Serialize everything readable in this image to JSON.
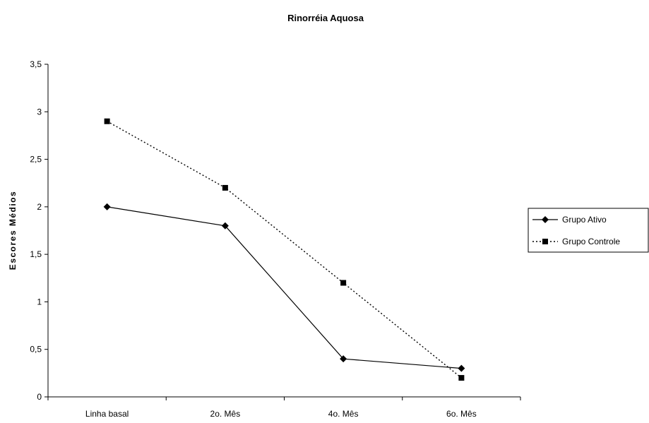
{
  "chart_data": {
    "type": "line",
    "title": "Rinorréia Aquosa",
    "xlabel": "",
    "ylabel": "Escores Médios",
    "categories": [
      "Linha basal",
      "2o. Mês",
      "4o. Mês",
      "6o. Mês"
    ],
    "y_ticks": [
      "0",
      "0,5",
      "1",
      "1,5",
      "2",
      "2,5",
      "3",
      "3,5"
    ],
    "ylim": [
      0,
      3.5
    ],
    "grid": false,
    "legend_position": "right",
    "series": [
      {
        "name": "Grupo Ativo",
        "values": [
          2.0,
          1.8,
          0.4,
          0.3
        ],
        "marker": "diamond",
        "line": "solid",
        "color": "#000000"
      },
      {
        "name": "Grupo Controle",
        "values": [
          2.9,
          2.2,
          1.2,
          0.2
        ],
        "marker": "square",
        "line": "dotted",
        "color": "#000000"
      }
    ]
  }
}
